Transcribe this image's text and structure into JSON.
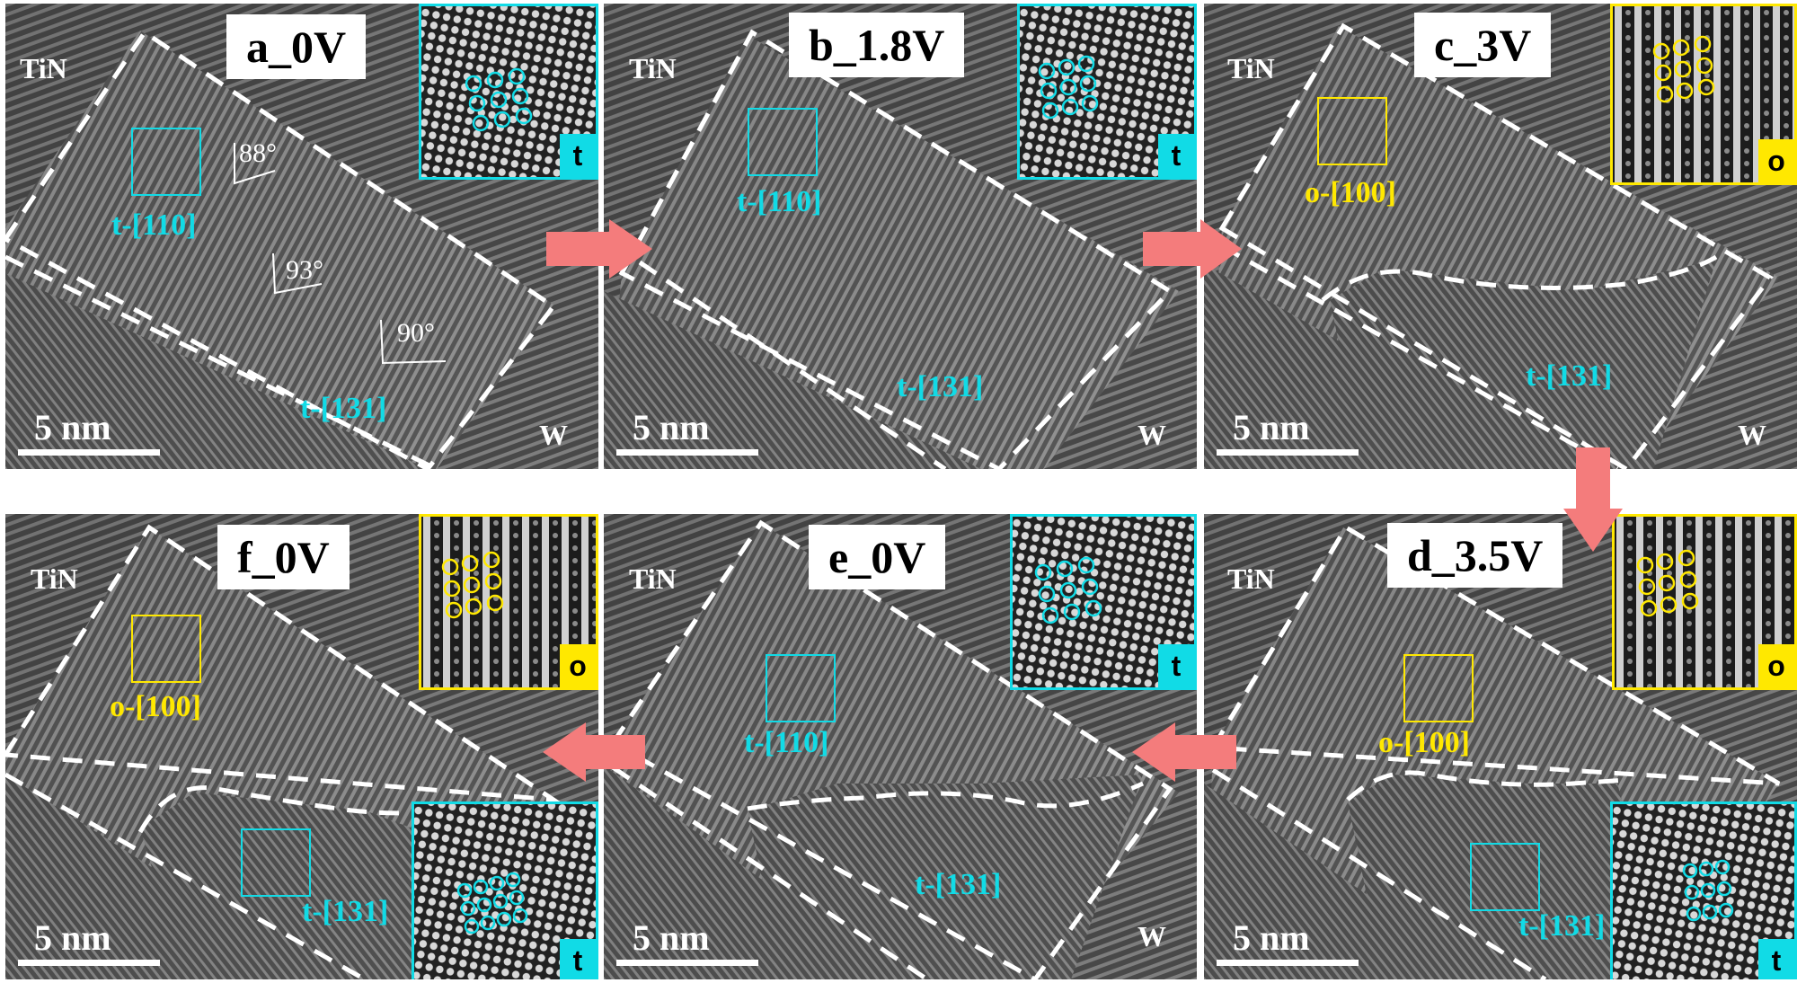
{
  "colors": {
    "tetragonal": "#11dbe6",
    "orthorhombic": "#ffe800",
    "arrow": "#f47c7c"
  },
  "panels": {
    "a": {
      "title": "a_0V",
      "material_top": "TiN",
      "material_bottom": "W",
      "scale": "5 nm",
      "phase1": "t-[110]",
      "phase2": "t-[131]",
      "inset_badge": "t",
      "angle1": "88°",
      "angle2": "93°",
      "angle3": "90°"
    },
    "b": {
      "title": "b_1.8V",
      "material_top": "TiN",
      "material_bottom": "W",
      "scale": "5 nm",
      "phase1": "t-[110]",
      "phase2": "t-[131]",
      "inset_badge": "t"
    },
    "c": {
      "title": "c_3V",
      "material_top": "TiN",
      "material_bottom": "W",
      "scale": "5 nm",
      "phase1": "o-[100]",
      "phase2": "t-[131]",
      "inset_badge": "o"
    },
    "d": {
      "title": "d_3.5V",
      "material_top": "TiN",
      "scale": "5 nm",
      "phase1": "o-[100]",
      "phase2": "t-[131]",
      "inset_badge": "o",
      "inset2_badge": "t"
    },
    "e": {
      "title": "e_0V",
      "material_top": "TiN",
      "material_bottom": "W",
      "scale": "5 nm",
      "phase1": "t-[110]",
      "phase2": "t-[131]",
      "inset_badge": "t"
    },
    "f": {
      "title": "f_0V",
      "material_top": "TiN",
      "scale": "5 nm",
      "phase1": "o-[100]",
      "phase2": "t-[131]",
      "inset_badge": "o",
      "inset2_badge": "t"
    }
  }
}
